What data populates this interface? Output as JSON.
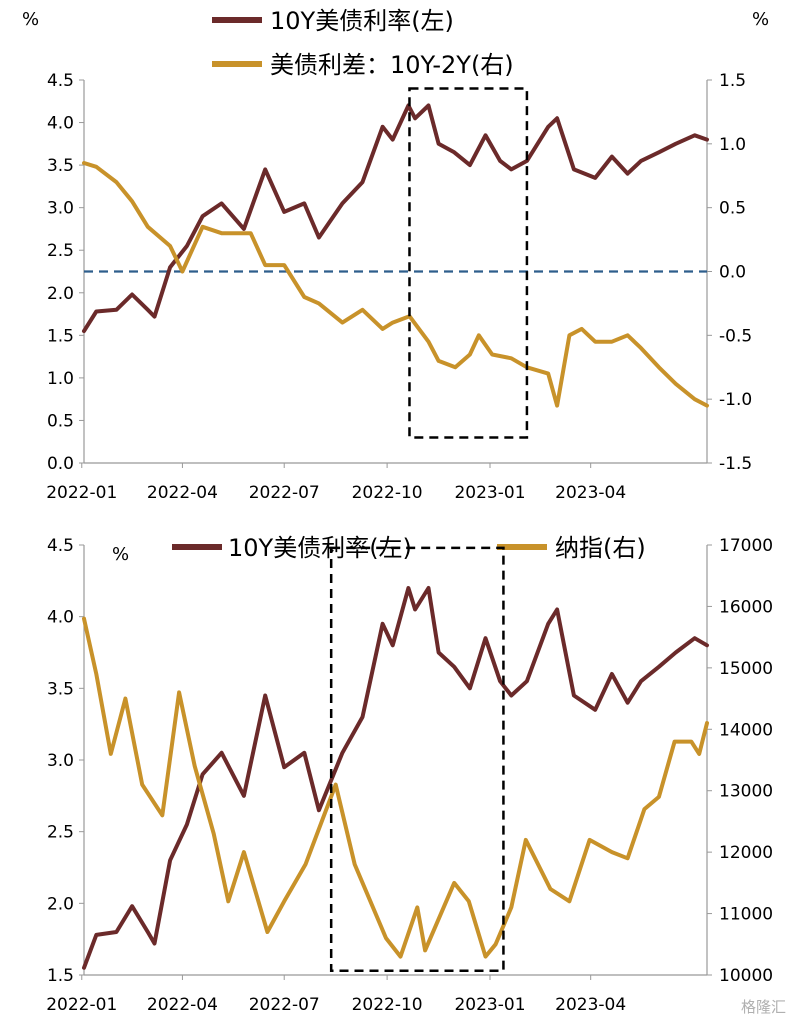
{
  "colors": {
    "yield": "#6b2a2a",
    "spread": "#c8922a",
    "nasdaq": "#c8922a",
    "zero_line": "#2e5e8c"
  },
  "watermark": "格隆汇",
  "chart_data": [
    {
      "type": "line",
      "units": {
        "left": "%",
        "right": "%"
      },
      "x_ticks": [
        "2022-01",
        "2022-04",
        "2022-07",
        "2022-10",
        "2023-01",
        "2023-04"
      ],
      "x_range": [
        "2022-01-03",
        "2023-07-14"
      ],
      "left_axis": {
        "ylim": [
          0.0,
          4.5
        ],
        "ticks": [
          "0.0",
          "0.5",
          "1.0",
          "1.5",
          "2.0",
          "2.5",
          "3.0",
          "3.5",
          "4.0",
          "4.5"
        ]
      },
      "right_axis": {
        "ylim": [
          -1.5,
          1.5
        ],
        "ticks": [
          "-1.5",
          "-1.0",
          "-0.5",
          "0.0",
          "0.5",
          "1.0",
          "1.5"
        ]
      },
      "reference_line": {
        "axis": "right",
        "value": 0.0,
        "style": "dashed"
      },
      "highlight_box": {
        "x": [
          "2022-10-21",
          "2023-02-03"
        ],
        "y_left": [
          0.3,
          4.4
        ]
      },
      "legend_placement": "top-center",
      "series": [
        {
          "name": "10Y美债利率(左)",
          "axis": "left",
          "color": "yield",
          "points": [
            [
              "2022-01-03",
              1.55
            ],
            [
              "2022-01-14",
              1.78
            ],
            [
              "2022-02-01",
              1.8
            ],
            [
              "2022-02-15",
              1.98
            ],
            [
              "2022-03-01",
              1.8
            ],
            [
              "2022-03-07",
              1.72
            ],
            [
              "2022-03-21",
              2.3
            ],
            [
              "2022-04-05",
              2.55
            ],
            [
              "2022-04-19",
              2.9
            ],
            [
              "2022-05-06",
              3.05
            ],
            [
              "2022-05-26",
              2.75
            ],
            [
              "2022-06-14",
              3.45
            ],
            [
              "2022-07-01",
              2.95
            ],
            [
              "2022-07-19",
              3.05
            ],
            [
              "2022-08-01",
              2.65
            ],
            [
              "2022-08-22",
              3.05
            ],
            [
              "2022-09-09",
              3.3
            ],
            [
              "2022-09-27",
              3.95
            ],
            [
              "2022-10-06",
              3.8
            ],
            [
              "2022-10-20",
              4.2
            ],
            [
              "2022-10-26",
              4.05
            ],
            [
              "2022-11-07",
              4.2
            ],
            [
              "2022-11-16",
              3.75
            ],
            [
              "2022-11-30",
              3.65
            ],
            [
              "2022-12-14",
              3.5
            ],
            [
              "2022-12-28",
              3.85
            ],
            [
              "2023-01-10",
              3.55
            ],
            [
              "2023-01-20",
              3.45
            ],
            [
              "2023-02-03",
              3.55
            ],
            [
              "2023-02-22",
              3.95
            ],
            [
              "2023-03-02",
              4.05
            ],
            [
              "2023-03-17",
              3.45
            ],
            [
              "2023-04-05",
              3.35
            ],
            [
              "2023-04-20",
              3.6
            ],
            [
              "2023-05-04",
              3.4
            ],
            [
              "2023-05-16",
              3.55
            ],
            [
              "2023-06-01",
              3.65
            ],
            [
              "2023-06-16",
              3.75
            ],
            [
              "2023-07-03",
              3.85
            ],
            [
              "2023-07-14",
              3.8
            ]
          ]
        },
        {
          "name": "美债利差：10Y-2Y(右)",
          "axis": "right",
          "color": "spread",
          "points": [
            [
              "2022-01-03",
              0.85
            ],
            [
              "2022-01-14",
              0.82
            ],
            [
              "2022-02-01",
              0.7
            ],
            [
              "2022-02-15",
              0.55
            ],
            [
              "2022-03-01",
              0.35
            ],
            [
              "2022-03-21",
              0.2
            ],
            [
              "2022-04-01",
              0.0
            ],
            [
              "2022-04-19",
              0.35
            ],
            [
              "2022-05-06",
              0.3
            ],
            [
              "2022-05-20",
              0.3
            ],
            [
              "2022-06-01",
              0.3
            ],
            [
              "2022-06-14",
              0.05
            ],
            [
              "2022-07-01",
              0.05
            ],
            [
              "2022-07-19",
              -0.2
            ],
            [
              "2022-08-01",
              -0.25
            ],
            [
              "2022-08-22",
              -0.4
            ],
            [
              "2022-09-09",
              -0.3
            ],
            [
              "2022-09-27",
              -0.45
            ],
            [
              "2022-10-06",
              -0.4
            ],
            [
              "2022-10-21",
              -0.35
            ],
            [
              "2022-11-07",
              -0.55
            ],
            [
              "2022-11-16",
              -0.7
            ],
            [
              "2022-12-01",
              -0.75
            ],
            [
              "2022-12-14",
              -0.65
            ],
            [
              "2022-12-22",
              -0.5
            ],
            [
              "2023-01-03",
              -0.65
            ],
            [
              "2023-01-20",
              -0.68
            ],
            [
              "2023-02-03",
              -0.75
            ],
            [
              "2023-02-22",
              -0.8
            ],
            [
              "2023-03-02",
              -1.05
            ],
            [
              "2023-03-13",
              -0.5
            ],
            [
              "2023-03-24",
              -0.45
            ],
            [
              "2023-04-05",
              -0.55
            ],
            [
              "2023-04-20",
              -0.55
            ],
            [
              "2023-05-04",
              -0.5
            ],
            [
              "2023-05-16",
              -0.6
            ],
            [
              "2023-06-01",
              -0.75
            ],
            [
              "2023-06-16",
              -0.88
            ],
            [
              "2023-07-03",
              -1.0
            ],
            [
              "2023-07-14",
              -1.05
            ]
          ]
        }
      ]
    },
    {
      "type": "line",
      "units": {
        "left": "%"
      },
      "x_ticks": [
        "2022-01",
        "2022-04",
        "2022-07",
        "2022-10",
        "2023-01",
        "2023-04"
      ],
      "x_range": [
        "2022-01-03",
        "2023-07-14"
      ],
      "left_axis": {
        "ylim": [
          1.5,
          4.5
        ],
        "ticks": [
          "1.5",
          "2.0",
          "2.5",
          "3.0",
          "3.5",
          "4.0",
          "4.5"
        ]
      },
      "right_axis": {
        "ylim": [
          10000,
          17000
        ],
        "ticks": [
          "10000",
          "11000",
          "12000",
          "13000",
          "14000",
          "15000",
          "16000",
          "17000"
        ]
      },
      "highlight_box": {
        "x": [
          "2022-08-12",
          "2023-01-13"
        ],
        "y_left": [
          1.53,
          4.48
        ]
      },
      "legend_placement": "top-right",
      "series": [
        {
          "name": "10Y美债利率(左)",
          "axis": "left",
          "color": "yield",
          "points": [
            [
              "2022-01-03",
              1.55
            ],
            [
              "2022-01-14",
              1.78
            ],
            [
              "2022-02-01",
              1.8
            ],
            [
              "2022-02-15",
              1.98
            ],
            [
              "2022-03-01",
              1.8
            ],
            [
              "2022-03-07",
              1.72
            ],
            [
              "2022-03-21",
              2.3
            ],
            [
              "2022-04-05",
              2.55
            ],
            [
              "2022-04-19",
              2.9
            ],
            [
              "2022-05-06",
              3.05
            ],
            [
              "2022-05-26",
              2.75
            ],
            [
              "2022-06-14",
              3.45
            ],
            [
              "2022-07-01",
              2.95
            ],
            [
              "2022-07-19",
              3.05
            ],
            [
              "2022-08-01",
              2.65
            ],
            [
              "2022-08-22",
              3.05
            ],
            [
              "2022-09-09",
              3.3
            ],
            [
              "2022-09-27",
              3.95
            ],
            [
              "2022-10-06",
              3.8
            ],
            [
              "2022-10-20",
              4.2
            ],
            [
              "2022-10-26",
              4.05
            ],
            [
              "2022-11-07",
              4.2
            ],
            [
              "2022-11-16",
              3.75
            ],
            [
              "2022-11-30",
              3.65
            ],
            [
              "2022-12-14",
              3.5
            ],
            [
              "2022-12-28",
              3.85
            ],
            [
              "2023-01-10",
              3.55
            ],
            [
              "2023-01-20",
              3.45
            ],
            [
              "2023-02-03",
              3.55
            ],
            [
              "2023-02-22",
              3.95
            ],
            [
              "2023-03-02",
              4.05
            ],
            [
              "2023-03-17",
              3.45
            ],
            [
              "2023-04-05",
              3.35
            ],
            [
              "2023-04-20",
              3.6
            ],
            [
              "2023-05-04",
              3.4
            ],
            [
              "2023-05-16",
              3.55
            ],
            [
              "2023-06-01",
              3.65
            ],
            [
              "2023-06-16",
              3.75
            ],
            [
              "2023-07-03",
              3.85
            ],
            [
              "2023-07-14",
              3.8
            ]
          ]
        },
        {
          "name": "纳指(右)",
          "axis": "right",
          "color": "nasdaq",
          "points": [
            [
              "2022-01-03",
              15800
            ],
            [
              "2022-01-14",
              14900
            ],
            [
              "2022-01-27",
              13600
            ],
            [
              "2022-02-09",
              14500
            ],
            [
              "2022-02-24",
              13100
            ],
            [
              "2022-03-14",
              12600
            ],
            [
              "2022-03-29",
              14600
            ],
            [
              "2022-04-12",
              13400
            ],
            [
              "2022-04-29",
              12300
            ],
            [
              "2022-05-12",
              11200
            ],
            [
              "2022-05-26",
              12000
            ],
            [
              "2022-06-16",
              10700
            ],
            [
              "2022-07-01",
              11200
            ],
            [
              "2022-07-20",
              11800
            ],
            [
              "2022-08-16",
              13100
            ],
            [
              "2022-09-02",
              11800
            ],
            [
              "2022-09-30",
              10600
            ],
            [
              "2022-10-13",
              10300
            ],
            [
              "2022-10-28",
              11100
            ],
            [
              "2022-11-04",
              10400
            ],
            [
              "2022-11-30",
              11500
            ],
            [
              "2022-12-13",
              11200
            ],
            [
              "2022-12-28",
              10300
            ],
            [
              "2023-01-06",
              10500
            ],
            [
              "2023-01-20",
              11100
            ],
            [
              "2023-02-02",
              12200
            ],
            [
              "2023-02-24",
              11400
            ],
            [
              "2023-03-13",
              11200
            ],
            [
              "2023-03-31",
              12200
            ],
            [
              "2023-04-20",
              12000
            ],
            [
              "2023-05-04",
              11900
            ],
            [
              "2023-05-19",
              12700
            ],
            [
              "2023-06-01",
              12900
            ],
            [
              "2023-06-15",
              13800
            ],
            [
              "2023-06-30",
              13800
            ],
            [
              "2023-07-07",
              13600
            ],
            [
              "2023-07-14",
              14100
            ]
          ]
        }
      ]
    }
  ]
}
